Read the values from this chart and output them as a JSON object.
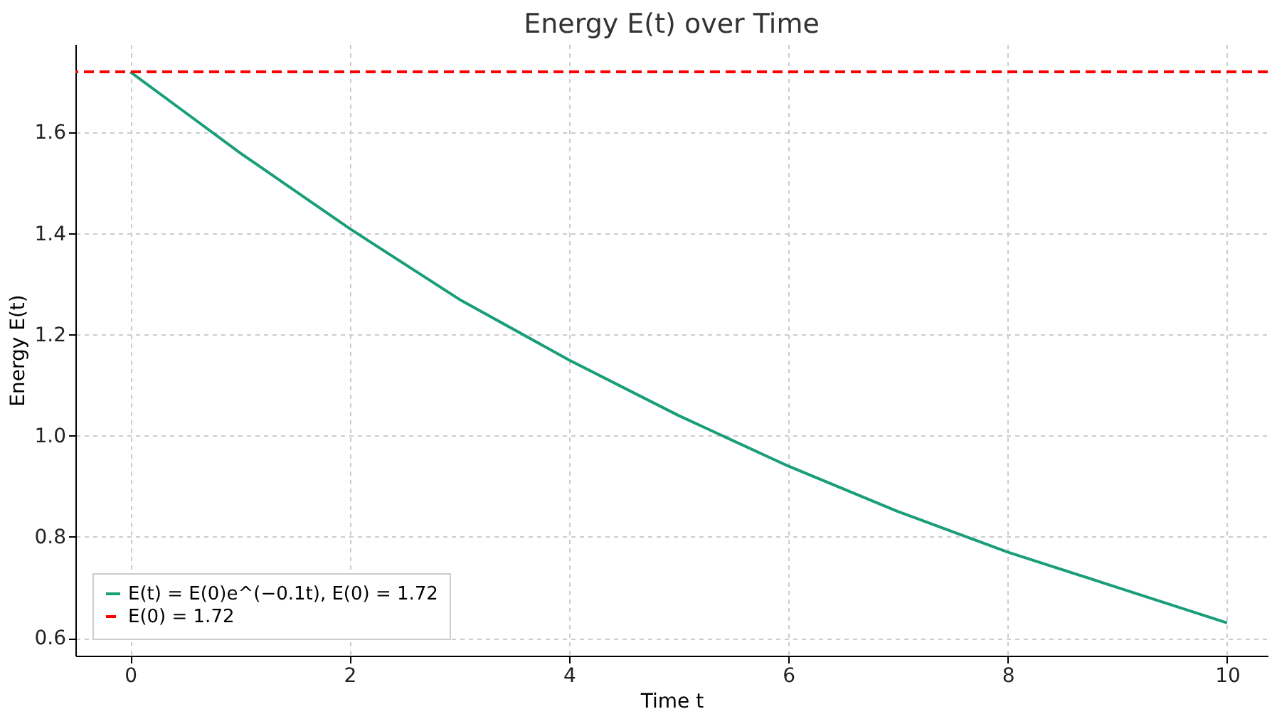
{
  "chart_data": {
    "type": "line",
    "title": "Energy E(t) over Time",
    "xlabel": "Time t",
    "ylabel": "Energy E(t)",
    "x": [
      0,
      1,
      2,
      3,
      4,
      5,
      6,
      7,
      8,
      9,
      10
    ],
    "series": [
      {
        "name": "E(t) = E(0)e^(−0.1t), E(0) = 1.72",
        "color": "#1a9e7a",
        "values": [
          1.72,
          1.56,
          1.41,
          1.27,
          1.15,
          1.04,
          0.94,
          0.85,
          0.77,
          0.7,
          0.63
        ]
      }
    ],
    "xlim": [
      -0.5,
      10.37
    ],
    "xticks": [
      0,
      2,
      4,
      6,
      8,
      10
    ],
    "ylim": [
      0.565,
      1.775
    ],
    "yticks": [
      0.6,
      0.8,
      {
        "value": 1,
        "label": "1.0"
      },
      1.2,
      1.4,
      1.6
    ],
    "ref_lines": [
      {
        "axis": "y",
        "value": 1.72,
        "label": "E(0) = 1.72",
        "color": "#ff0000",
        "line_style": "dashed"
      }
    ],
    "grid": true,
    "legend": "bottom left",
    "marker": "none",
    "line_style": "solid"
  }
}
